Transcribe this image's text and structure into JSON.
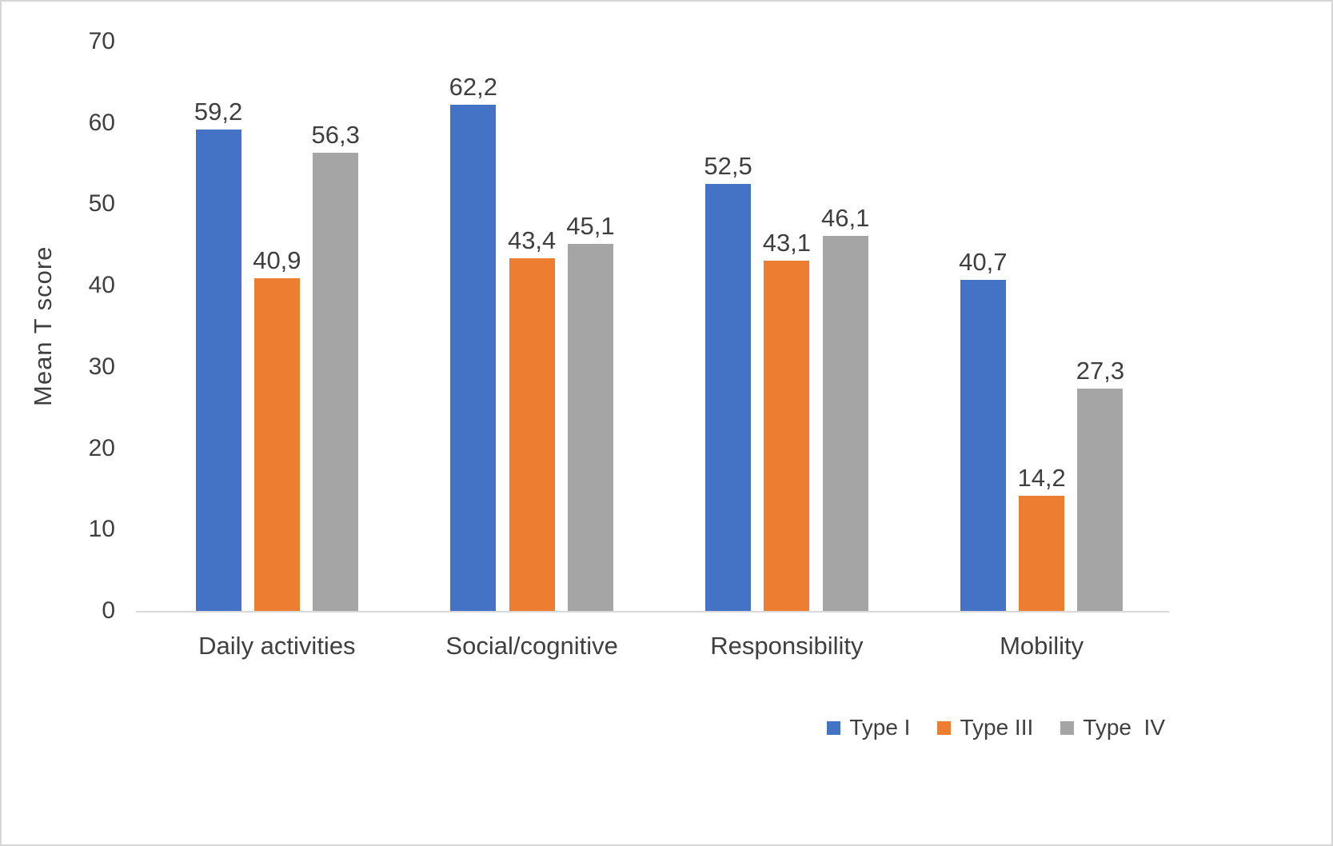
{
  "chart_data": {
    "type": "bar",
    "title": "",
    "xlabel": "",
    "ylabel": "Mean T score",
    "ylim": [
      0,
      70
    ],
    "yticks": [
      0,
      10,
      20,
      30,
      40,
      50,
      60,
      70
    ],
    "grid": false,
    "legend_position": "bottom-right",
    "decimal_separator": ",",
    "categories": [
      "Daily activities",
      "Social/cognitive",
      "Responsibility",
      "Mobility"
    ],
    "series": [
      {
        "name": "Type I",
        "color": "#4472C4",
        "values": [
          59.2,
          62.2,
          52.5,
          40.7
        ],
        "labels": [
          "59,2",
          "62,2",
          "52,5",
          "40,7"
        ]
      },
      {
        "name": "Type III",
        "color": "#ED7D31",
        "values": [
          40.9,
          43.4,
          43.1,
          14.2
        ],
        "labels": [
          "40,9",
          "43,4",
          "43,1",
          "14,2"
        ]
      },
      {
        "name": "Type  IV",
        "color": "#A5A5A5",
        "values": [
          56.3,
          45.1,
          46.1,
          27.3
        ],
        "labels": [
          "56,3",
          "45,1",
          "46,1",
          "27,3"
        ]
      }
    ]
  }
}
